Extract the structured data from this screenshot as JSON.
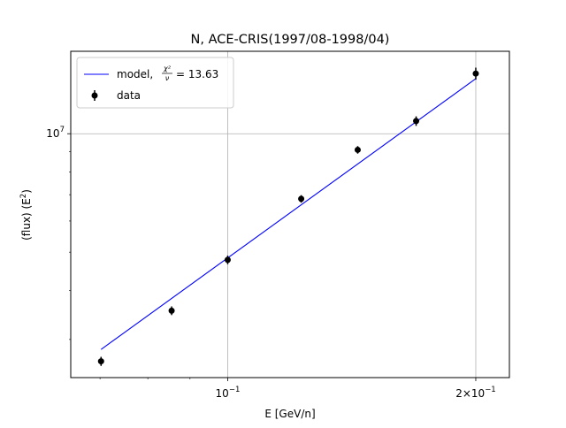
{
  "chart_data": {
    "type": "scatter",
    "title": "N, ACE-CRIS(1997/08-1998/04)",
    "xlabel": "E [GeV/n]",
    "ylabel": "(flux)  (E$^2$)",
    "ylabel_parts": {
      "main": "(flux)  (E",
      "sup": "2",
      "close": ")"
    },
    "x_scale": "log",
    "y_scale": "log",
    "xlim": [
      0.0645,
      0.2197
    ],
    "ylim": [
      2400000,
      16200000
    ],
    "grid": "major",
    "x_ticks": [
      {
        "value": 0.1,
        "base": "10",
        "exp": "−1"
      },
      {
        "value": 0.2,
        "base": "2×10",
        "exp": "−1"
      }
    ],
    "y_ticks": [
      {
        "value": 10000000,
        "base": "10",
        "exp": "7"
      }
    ],
    "legend": {
      "placement": "top-left",
      "model_prefix": "model,",
      "chi_num": "χ²",
      "chi_den": "ν",
      "model_value": "= 13.63",
      "data_label": "data"
    },
    "series": [
      {
        "name": "model",
        "kind": "line",
        "color": "#0000ff",
        "x": [
          0.0702,
          0.2
        ],
        "y": [
          2830000,
          13800000
        ]
      },
      {
        "name": "data",
        "kind": "errorbar",
        "color": "#000000",
        "x": [
          0.0702,
          0.0855,
          0.1,
          0.1228,
          0.1438,
          0.1693,
          0.2
        ],
        "y": [
          2640000,
          3550000,
          4780000,
          6830000,
          9100000,
          10770000,
          14220000
        ],
        "yerr": [
          70000,
          90000,
          120000,
          150000,
          200000,
          300000,
          500000
        ]
      }
    ]
  }
}
